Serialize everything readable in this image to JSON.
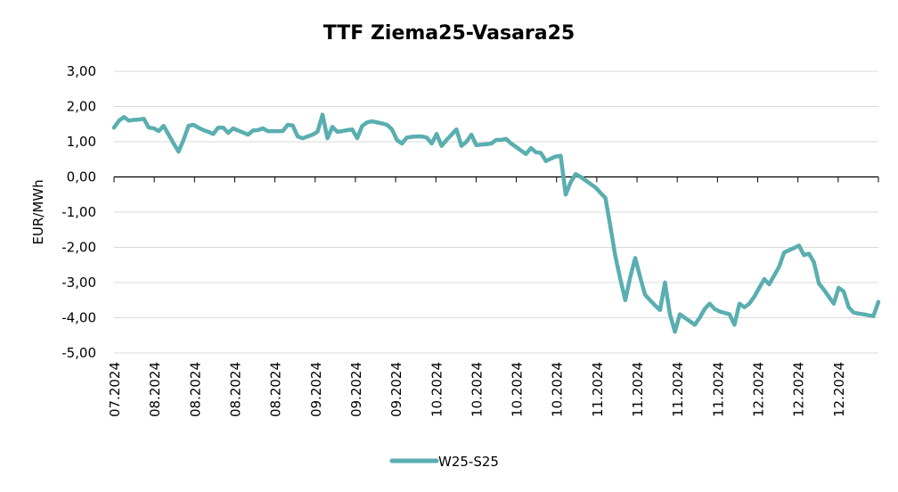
{
  "chart_data": {
    "type": "line",
    "title": "TTF Ziema25-Vasara25",
    "xlabel": "",
    "ylabel": "EUR/MWh",
    "ylim": [
      -5,
      3
    ],
    "yticks": [
      3,
      2,
      1,
      0,
      -1,
      -2,
      -3,
      -4,
      -5
    ],
    "ytick_labels": [
      "3,00",
      "2,00",
      "1,00",
      "0,00",
      "-1,00",
      "-2,00",
      "-3,00",
      "-4,00",
      "-5,00"
    ],
    "xtick_labels": [
      "07.2024",
      "08.2024",
      "08.2024",
      "08.2024",
      "08.2024",
      "09.2024",
      "09.2024",
      "09.2024",
      "10.2024",
      "10.2024",
      "10.2024",
      "10.2024",
      "11.2024",
      "11.2024",
      "11.2024",
      "11.2024",
      "12.2024",
      "12.2024",
      "12.2024"
    ],
    "grid": true,
    "legend_position": "bottom",
    "color": "#5aaeb0",
    "series": [
      {
        "name": "W25-S25",
        "values": [
          1.4,
          1.6,
          1.7,
          1.6,
          1.62,
          1.63,
          1.65,
          1.4,
          1.38,
          1.3,
          1.45,
          1.2,
          0.95,
          0.72,
          1.05,
          1.45,
          1.48,
          1.4,
          1.33,
          1.28,
          1.22,
          1.4,
          1.4,
          1.25,
          1.38,
          1.32,
          1.26,
          1.2,
          1.32,
          1.33,
          1.38,
          1.3,
          1.3,
          1.3,
          1.3,
          1.48,
          1.46,
          1.15,
          1.1,
          1.15,
          1.2,
          1.28,
          1.77,
          1.1,
          1.42,
          1.28,
          1.3,
          1.33,
          1.35,
          1.1,
          1.45,
          1.55,
          1.58,
          1.55,
          1.52,
          1.48,
          1.35,
          1.05,
          0.95,
          1.12,
          1.14,
          1.15,
          1.15,
          1.12,
          0.95,
          1.22,
          0.88,
          1.05,
          1.2,
          1.35,
          0.88,
          1.0,
          1.2,
          0.9,
          0.92,
          0.93,
          0.95,
          1.05,
          1.05,
          1.08,
          0.95,
          0.85,
          0.75,
          0.65,
          0.82,
          0.7,
          0.68,
          0.45,
          0.52,
          0.58,
          0.6,
          -0.5,
          -0.15,
          0.08,
          0.0,
          -0.1,
          -0.2,
          -0.3,
          -0.45,
          -0.6,
          -1.4,
          -2.25,
          -2.9,
          -3.5,
          -2.85,
          -2.3,
          -2.85,
          -3.35,
          -3.5,
          -3.65,
          -3.78,
          -3.0,
          -3.9,
          -4.4,
          -3.9,
          -4.0,
          -4.1,
          -4.2,
          -4.0,
          -3.75,
          -3.6,
          -3.75,
          -3.82,
          -3.86,
          -3.9,
          -4.2,
          -3.6,
          -3.7,
          -3.6,
          -3.4,
          -3.15,
          -2.9,
          -3.05,
          -2.8,
          -2.55,
          -2.15,
          -2.08,
          -2.02,
          -1.95,
          -2.22,
          -2.18,
          -2.42,
          -3.02,
          -3.2,
          -3.4,
          -3.6,
          -3.15,
          -3.25,
          -3.7,
          -3.85,
          -3.88,
          -3.9,
          -3.93,
          -3.95,
          -3.55
        ]
      }
    ]
  }
}
